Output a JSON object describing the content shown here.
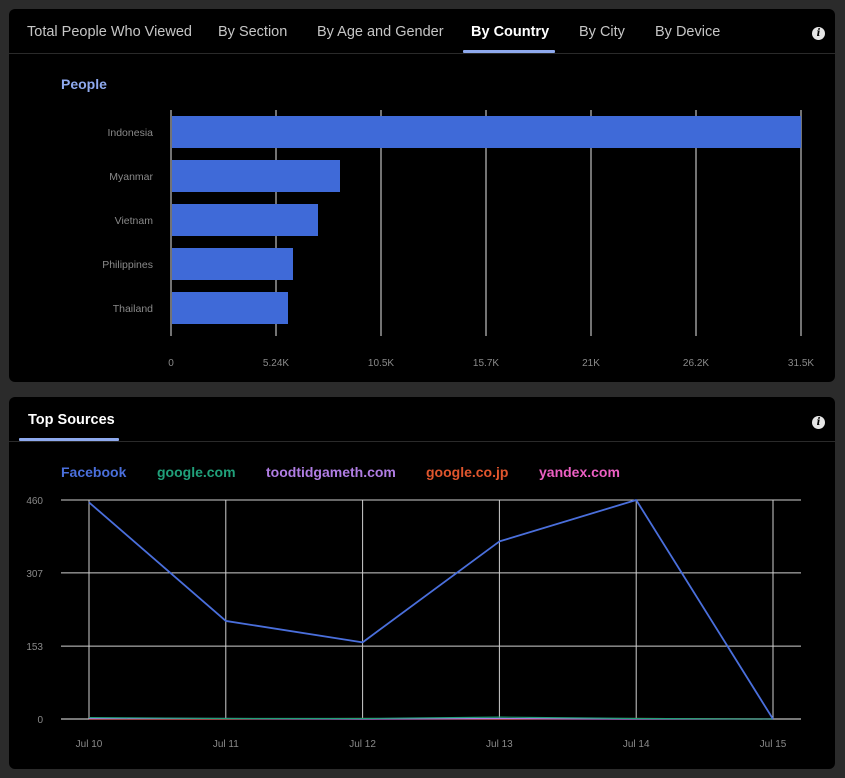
{
  "country_panel": {
    "tabs": [
      {
        "label": "Total People Who Viewed",
        "active": false
      },
      {
        "label": "By Section",
        "active": false
      },
      {
        "label": "By Age and Gender",
        "active": false
      },
      {
        "label": "By Country",
        "active": true
      },
      {
        "label": "By City",
        "active": false
      },
      {
        "label": "By Device",
        "active": false
      }
    ],
    "info_icon": "info-icon",
    "legend_label": "People",
    "accent_color": "#3f6ad8",
    "chart_data": {
      "type": "bar",
      "orientation": "horizontal",
      "categories": [
        "Indonesia",
        "Myanmar",
        "Vietnam",
        "Philippines",
        "Thailand"
      ],
      "values": [
        31500,
        8450,
        7350,
        6100,
        5850
      ],
      "series": [
        {
          "name": "People",
          "values": [
            31500,
            8450,
            7350,
            6100,
            5850
          ]
        }
      ],
      "x_ticks": [
        "0",
        "5.24K",
        "10.5K",
        "15.7K",
        "21K",
        "26.2K",
        "31.5K"
      ],
      "xlim": [
        0,
        31500
      ],
      "grid": true,
      "legend_position": "top-left"
    }
  },
  "sources_panel": {
    "tabs": [
      {
        "label": "Top Sources",
        "active": true
      }
    ],
    "info_icon": "info-icon",
    "chart_data": {
      "type": "line",
      "x": [
        "Jul 10",
        "Jul 11",
        "Jul 12",
        "Jul 13",
        "Jul 14",
        "Jul 15"
      ],
      "y_ticks": [
        "0",
        "153",
        "307",
        "460"
      ],
      "ylim": [
        0,
        460
      ],
      "grid": true,
      "legend_position": "top-left",
      "series": [
        {
          "name": "Facebook",
          "color": "#4a6fdc",
          "values": [
            455,
            206,
            161,
            373,
            460,
            0
          ]
        },
        {
          "name": "google.com",
          "color": "#20a07a",
          "values": [
            3,
            1,
            1,
            4,
            1,
            0
          ]
        },
        {
          "name": "toodtidgameth.com",
          "color": "#b07de3",
          "values": [
            1,
            1,
            0,
            1,
            0,
            0
          ]
        },
        {
          "name": "google.co.jp",
          "color": "#e0552d",
          "values": [
            0,
            0,
            1,
            0,
            1,
            0
          ]
        },
        {
          "name": "yandex.com",
          "color": "#ec5fc3",
          "values": [
            0,
            0,
            0,
            0,
            0,
            0
          ]
        }
      ]
    }
  }
}
